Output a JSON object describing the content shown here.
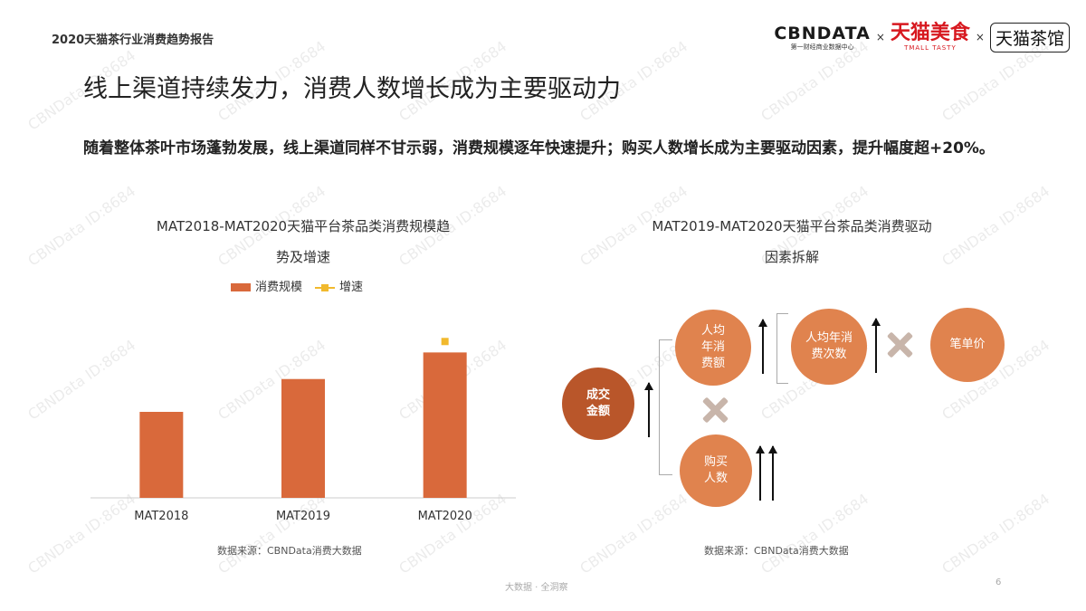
{
  "header": {
    "report_tag": "2020天猫茶行业消费趋势报告",
    "logos": {
      "cbn_main": "CBNDATA",
      "cbn_sub": "第一财经商业数据中心",
      "separator": "×",
      "meishi_main": "天猫美食",
      "meishi_sub": "TMALL TASTY",
      "chaguan": "天猫茶馆"
    }
  },
  "headline": "线上渠道持续发力，消费人数增长成为主要驱动力",
  "summary": "随着整体茶叶市场蓬勃发展，线上渠道同样不甘示弱，消费规模逐年快速提升；购买人数增长成为主要驱动因素，提升幅度超+20%。",
  "left_chart": {
    "title_line1": "MAT2018-MAT2020天猫平台茶品类消费规模趋",
    "title_line2": "势及增速",
    "source": "数据来源：CBNData消费大数据"
  },
  "chart_data": {
    "type": "bar",
    "categories": [
      "MAT2018",
      "MAT2019",
      "MAT2020"
    ],
    "series": [
      {
        "name": "消费规模",
        "values": [
          0.55,
          0.76,
          0.93
        ],
        "color": "#d9693b",
        "type": "bar"
      },
      {
        "name": "增速",
        "values": [
          null,
          null,
          1.0
        ],
        "color": "#f1b92d",
        "type": "line"
      }
    ],
    "ylim": [
      0,
      1.1
    ],
    "grid": false,
    "legend_position": "top-center",
    "title": "MAT2018-MAT2020天猫平台茶品类消费规模趋势及增速",
    "xlabel": "",
    "ylabel": ""
  },
  "right_chart": {
    "title_line1": "MAT2019-MAT2020天猫平台茶品类消费驱动",
    "title_line2": "因素拆解",
    "source": "数据来源：CBNData消费大数据",
    "nodes": {
      "gmv": "成交\n金额",
      "avg_spend": "人均\n年消\n费额",
      "buyers": "购买\n人数",
      "freq": "人均年消\n费次数",
      "unit_price": "笔单价"
    }
  },
  "watermark": "CBNData ID:8684",
  "footer": {
    "center": "大数据 · 全洞察",
    "page": "6"
  }
}
